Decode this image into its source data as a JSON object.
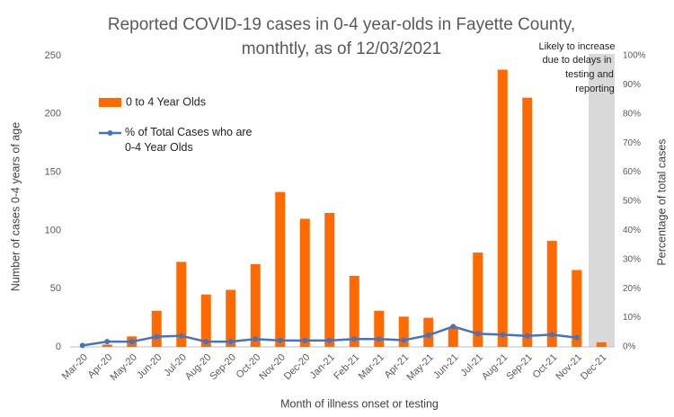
{
  "chart_data": {
    "type": "bar",
    "title": [
      "Reported COVID-19 cases in 0-4 year-olds in Fayette County,",
      "monthtly, as of 12/03/2021"
    ],
    "x_label": "Month of illness onset or testing",
    "y_label": "Number of cases 0-4 years of age",
    "y2_label": "Percentage of total cases",
    "annotation": [
      "Likely to increase",
      "due to delays in",
      "testing and",
      "reporting"
    ],
    "categories": [
      "Mar-20",
      "Apr-20",
      "May-20",
      "Jun-20",
      "Jul-20",
      "Aug-20",
      "Sep-20",
      "Oct-20",
      "Nov-20",
      "Dec-20",
      "Jan-21",
      "Feb-21",
      "Mar-21",
      "Apr-21",
      "May-21",
      "Jun-21",
      "Jul-21",
      "Aug-21",
      "Sep-21",
      "Oct-21",
      "Nov-21",
      "Dec-21"
    ],
    "series": [
      {
        "name": "0 to 4 Year Olds",
        "type": "bar",
        "color": "#ff6a00",
        "values": [
          0,
          2,
          9,
          31,
          73,
          45,
          49,
          71,
          133,
          110,
          115,
          61,
          31,
          26,
          25,
          17,
          81,
          238,
          214,
          91,
          66,
          4
        ]
      },
      {
        "name": "% of Total Cases who are 0-4 Year Olds",
        "type": "line",
        "axis": "y2",
        "color": "#4472c4",
        "values": [
          0.5,
          1.8,
          1.8,
          3.5,
          3.8,
          1.8,
          1.8,
          2.7,
          2.2,
          2.2,
          2.2,
          2.7,
          2.7,
          2.3,
          4,
          7,
          4.5,
          4.2,
          3.8,
          4.2,
          3.2,
          null
        ]
      }
    ],
    "ylim": [
      0,
      250
    ],
    "yticks": [
      0,
      50,
      100,
      150,
      200,
      250
    ],
    "y2lim": [
      0,
      100
    ],
    "y2ticks": [
      {
        "value": 0,
        "label": "0%"
      },
      {
        "value": 10,
        "label": "10%"
      },
      {
        "value": 20,
        "label": "20%"
      },
      {
        "value": 30,
        "label": "30%"
      },
      {
        "value": 40,
        "label": "40%"
      },
      {
        "value": 50,
        "label": "50%"
      },
      {
        "value": 60,
        "label": "60%"
      },
      {
        "value": 70,
        "label": "70%"
      },
      {
        "value": 80,
        "label": "80%"
      },
      {
        "value": 90,
        "label": "90%"
      },
      {
        "value": 100,
        "label": "100%"
      }
    ],
    "grid": false
  }
}
